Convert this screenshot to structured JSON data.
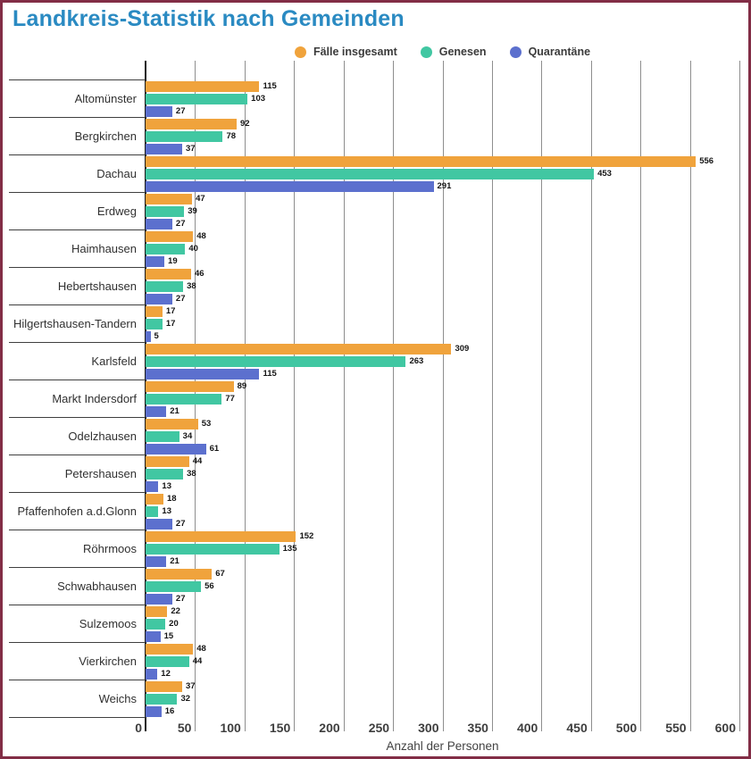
{
  "title": "Landkreis-Statistik nach Gemeinden",
  "colors": {
    "accent_title": "#2a8ac2",
    "border": "#822d46",
    "series_faelle": "#f0a33c",
    "series_genesen": "#41c7a2",
    "series_quarantaene": "#5c70ce"
  },
  "legend": [
    {
      "label": "Fälle insgesamt",
      "color": "#f0a33c"
    },
    {
      "label": "Genesen",
      "color": "#41c7a2"
    },
    {
      "label": "Quarantäne",
      "color": "#5c70ce"
    }
  ],
  "chart_data": {
    "type": "bar",
    "orientation": "horizontal",
    "title": "Landkreis-Statistik nach Gemeinden",
    "xlabel": "Anzahl der Personen",
    "ylabel": "",
    "xlim": [
      0,
      600
    ],
    "xticks": [
      0,
      50,
      100,
      150,
      200,
      250,
      300,
      350,
      400,
      450,
      500,
      550,
      600
    ],
    "grid": true,
    "legend_position": "top",
    "categories": [
      "Altomünster",
      "Bergkirchen",
      "Dachau",
      "Erdweg",
      "Haimhausen",
      "Hebertshausen",
      "Hilgertshausen-Tandern",
      "Karlsfeld",
      "Markt Indersdorf",
      "Odelzhausen",
      "Petershausen",
      "Pfaffenhofen a.d.Glonn",
      "Röhrmoos",
      "Schwabhausen",
      "Sulzemoos",
      "Vierkirchen",
      "Weichs"
    ],
    "series": [
      {
        "name": "Fälle insgesamt",
        "color": "#f0a33c",
        "values": [
          115,
          92,
          556,
          47,
          48,
          46,
          17,
          309,
          89,
          53,
          44,
          18,
          152,
          67,
          22,
          48,
          37
        ]
      },
      {
        "name": "Genesen",
        "color": "#41c7a2",
        "values": [
          103,
          78,
          453,
          39,
          40,
          38,
          17,
          263,
          77,
          34,
          38,
          13,
          135,
          56,
          20,
          44,
          32
        ]
      },
      {
        "name": "Quarantäne",
        "color": "#5c70ce",
        "values": [
          27,
          37,
          291,
          27,
          19,
          27,
          5,
          115,
          21,
          61,
          13,
          27,
          21,
          27,
          15,
          12,
          16
        ]
      }
    ]
  }
}
